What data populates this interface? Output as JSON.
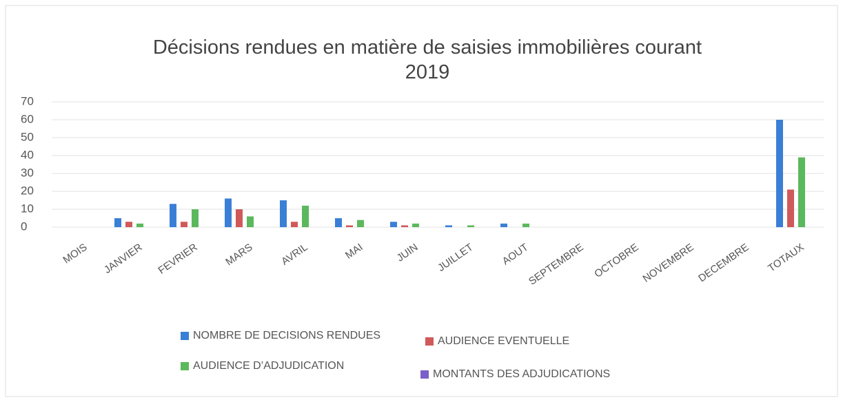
{
  "chart_data": {
    "type": "bar",
    "title": "Décisions rendues en matière de saisies immobilières courant 2019",
    "categories": [
      "MOIS",
      "JANVIER",
      "FEVRIER",
      "MARS",
      "AVRIL",
      "MAI",
      "JUIN",
      "JUILLET",
      "AOUT",
      "SEPTEMBRE",
      "OCTOBRE",
      "NOVEMBRE",
      "DECEMBRE",
      "TOTAUX"
    ],
    "series": [
      {
        "name": "NOMBRE DE DECISIONS RENDUES",
        "color": "#3a7fd6",
        "values": [
          null,
          5,
          13,
          16,
          15,
          5,
          3,
          1,
          2,
          null,
          null,
          null,
          null,
          60
        ]
      },
      {
        "name": "AUDIENCE EVENTUELLE",
        "color": "#d05a5a",
        "values": [
          null,
          3,
          3,
          10,
          3,
          1,
          1,
          null,
          null,
          null,
          null,
          null,
          null,
          21
        ]
      },
      {
        "name": "AUDIENCE D’ADJUDICATION",
        "color": "#5cb85c",
        "values": [
          null,
          2,
          10,
          6,
          12,
          4,
          2,
          1,
          2,
          null,
          null,
          null,
          null,
          39
        ]
      },
      {
        "name": "MONTANTS DES ADJUDICATIONS",
        "color": "#7a5fc8",
        "values": [
          null,
          null,
          null,
          null,
          null,
          null,
          null,
          null,
          null,
          null,
          null,
          null,
          null,
          null
        ]
      }
    ],
    "ylim": [
      0,
      70
    ],
    "yticks": [
      0,
      10,
      20,
      30,
      40,
      50,
      60,
      70
    ],
    "grid": true,
    "legend": "bottom"
  }
}
